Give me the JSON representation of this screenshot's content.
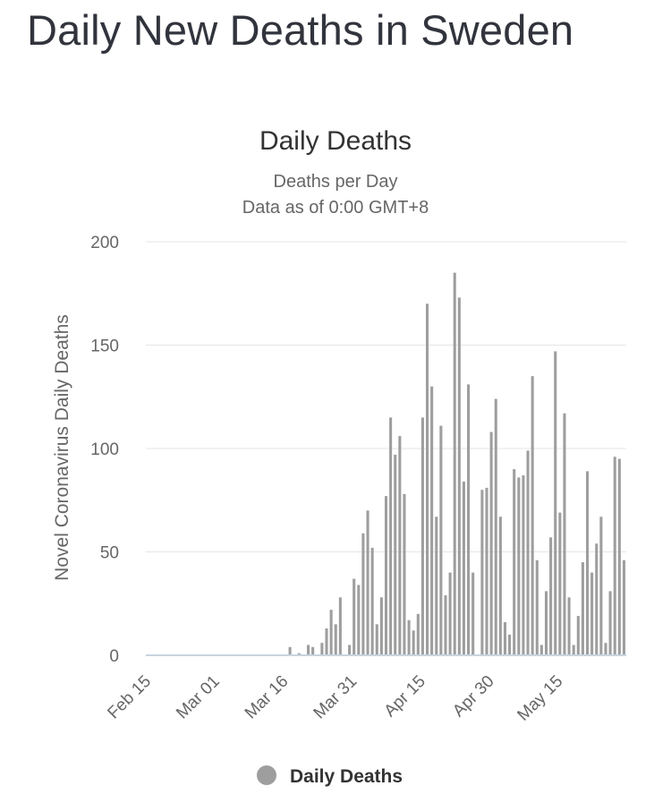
{
  "page": {
    "title": "Daily New Deaths in Sweden"
  },
  "chart_data": {
    "type": "bar",
    "title": "Daily Deaths",
    "subtitle_lines": [
      "Deaths per Day",
      "Data as of 0:00 GMT+8"
    ],
    "xlabel": "",
    "ylabel": "Novel Coronavirus Daily Deaths",
    "ylim": [
      0,
      200
    ],
    "y_ticks": [
      0,
      50,
      100,
      150,
      200
    ],
    "x_start": "Feb 15",
    "x_ticks": [
      "Feb 15",
      "Mar 01",
      "Mar 16",
      "Mar 31",
      "Apr 15",
      "Apr 30",
      "May 15"
    ],
    "grid": true,
    "legend_position": "bottom-center",
    "bar_color": "#9e9e9e",
    "series": [
      {
        "name": "Daily Deaths",
        "values": [
          0,
          0,
          0,
          0,
          0,
          0,
          0,
          0,
          0,
          0,
          0,
          0,
          0,
          0,
          0,
          0,
          0,
          0,
          0,
          0,
          0,
          0,
          0,
          0,
          0,
          0,
          0,
          0,
          0,
          0,
          0,
          4,
          0,
          1,
          0,
          5,
          4,
          0,
          6,
          13,
          22,
          15,
          28,
          0,
          5,
          37,
          34,
          59,
          70,
          52,
          15,
          28,
          77,
          115,
          97,
          106,
          78,
          17,
          12,
          20,
          115,
          170,
          130,
          67,
          111,
          29,
          40,
          185,
          173,
          84,
          131,
          40,
          0,
          80,
          81,
          108,
          124,
          67,
          16,
          10,
          90,
          86,
          87,
          99,
          135,
          46,
          5,
          31,
          57,
          147,
          69,
          117,
          28,
          5,
          19,
          45,
          89,
          40,
          54,
          67,
          6,
          31,
          96,
          95,
          46
        ]
      }
    ]
  }
}
